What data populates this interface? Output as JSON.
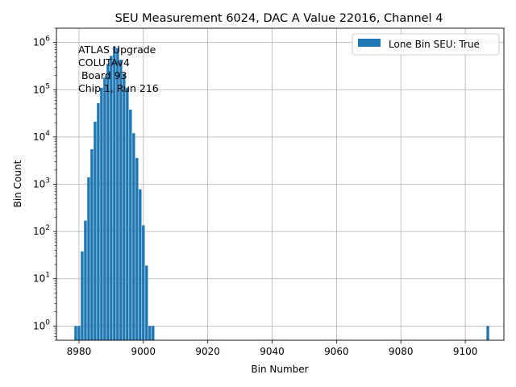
{
  "chart_data": {
    "type": "bar",
    "title": "SEU Measurement 6024, DAC A Value 22016, Channel 4",
    "xlabel": "Bin Number",
    "ylabel": "Bin Count",
    "yscale": "log",
    "xlim": [
      8973,
      9112
    ],
    "ylim": [
      0.5,
      2000000
    ],
    "grid": true,
    "legend_position": "top-right",
    "bar_color": "#1f77b4",
    "x_ticks": [
      {
        "value": 8980,
        "label": "8980"
      },
      {
        "value": 9000,
        "label": "9000"
      },
      {
        "value": 9020,
        "label": "9020"
      },
      {
        "value": 9040,
        "label": "9040"
      },
      {
        "value": 9060,
        "label": "9060"
      },
      {
        "value": 9080,
        "label": "9080"
      },
      {
        "value": 9100,
        "label": "9100"
      }
    ],
    "y_ticks": [
      {
        "value": 1,
        "base": "10",
        "exp": "0"
      },
      {
        "value": 10,
        "base": "10",
        "exp": "1"
      },
      {
        "value": 100,
        "base": "10",
        "exp": "2"
      },
      {
        "value": 1000,
        "base": "10",
        "exp": "3"
      },
      {
        "value": 10000,
        "base": "10",
        "exp": "4"
      },
      {
        "value": 100000,
        "base": "10",
        "exp": "5"
      },
      {
        "value": 1000000,
        "base": "10",
        "exp": "6"
      }
    ],
    "series": [
      {
        "name": "Lone Bin SEU: True",
        "color": "#1f77b4",
        "x": [
          8979,
          8980,
          8981,
          8982,
          8983,
          8984,
          8985,
          8986,
          8987,
          8988,
          8989,
          8990,
          8991,
          8992,
          8993,
          8994,
          8995,
          8996,
          8997,
          8998,
          8999,
          9000,
          9001,
          9002,
          9003,
          9107
        ],
        "values": [
          1,
          1,
          38,
          170,
          1400,
          5500,
          21000,
          52000,
          110000,
          180000,
          350000,
          520000,
          820000,
          760000,
          430000,
          220000,
          110000,
          38000,
          12000,
          3600,
          780,
          135,
          19,
          1,
          1,
          1
        ]
      }
    ],
    "annotation_lines": [
      "ATLAS Upgrade",
      "COLUTAv4",
      " Board 93",
      "Chip 1, Run 216"
    ]
  }
}
